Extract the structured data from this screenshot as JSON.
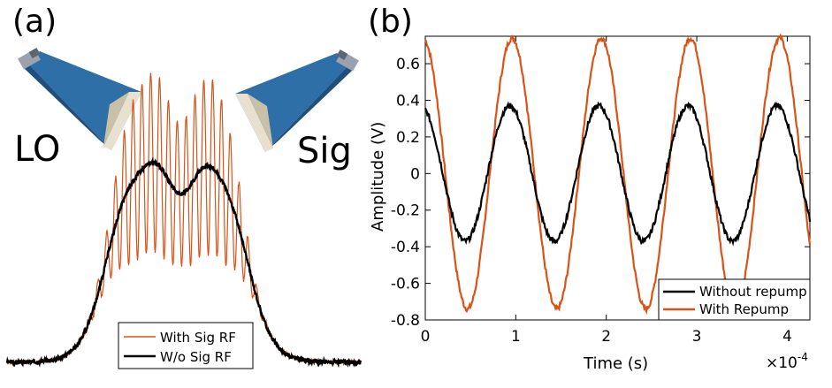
{
  "panels": {
    "a_label": "(a)",
    "b_label": "(b)"
  },
  "horn_labels": {
    "lo": "LO",
    "sig": "Sig"
  },
  "colors": {
    "black": "#000000",
    "orange": "#d95319",
    "horn_blue": "#2e6fa8",
    "horn_dark": "#1f4f7d",
    "horn_inner": "#e8e1cf"
  },
  "chart_data": [
    {
      "type": "line",
      "title": "",
      "xlabel": "",
      "ylabel": "",
      "legend": {
        "position": "bottom-right",
        "entries": [
          "With Sig RF",
          "W/o Sig RF"
        ]
      },
      "series": [
        {
          "name": "W/o Sig RF",
          "color": "#000000",
          "description": "double-humped envelope (peaks ~0.95, central dip ~0.82, baseline ~0)"
        },
        {
          "name": "With Sig RF",
          "color": "#d95319",
          "description": "same envelope modulated by interference fringes"
        }
      ]
    },
    {
      "type": "line",
      "title": "",
      "xlabel": "Time (s)",
      "ylabel": "Amplitude (V)",
      "x_multiplier": "×10",
      "x_multiplier_exp": "-4",
      "xlim": [
        0,
        4.25
      ],
      "ylim": [
        -0.8,
        0.75
      ],
      "xticks": [
        "0",
        "1",
        "2",
        "3",
        "4"
      ],
      "yticks": [
        "-0.8",
        "-0.6",
        "-0.4",
        "-0.2",
        "0",
        "0.2",
        "0.4",
        "0.6"
      ],
      "ytick_values": [
        -0.8,
        -0.6,
        -0.4,
        -0.2,
        0,
        0.2,
        0.4,
        0.6
      ],
      "xtick_values": [
        0,
        1,
        2,
        3,
        4
      ],
      "legend": {
        "position": "bottom-right",
        "entries": [
          "Without repump",
          "With Repump"
        ]
      },
      "series": [
        {
          "name": "Without repump",
          "color": "#000000",
          "amplitude": 0.37,
          "period": 0.985,
          "phase_offset": 0.4,
          "x": [
            0,
            0.45,
            0.95,
            1.45,
            1.95,
            2.45,
            2.95,
            3.45,
            3.95,
            4.25
          ],
          "y": [
            0.35,
            -0.38,
            0.36,
            -0.39,
            0.37,
            -0.44,
            0.36,
            -0.38,
            0.36,
            -0.07
          ]
        },
        {
          "name": "With Repump",
          "color": "#d95319",
          "amplitude": 0.74,
          "period": 0.985,
          "phase_offset": 0.22,
          "x": [
            0,
            0.48,
            0.95,
            1.45,
            1.95,
            2.45,
            2.95,
            3.45,
            3.95,
            4.25
          ],
          "y": [
            0.73,
            -0.75,
            0.75,
            -0.73,
            0.73,
            -0.73,
            0.73,
            -0.72,
            0.73,
            0.1
          ]
        }
      ]
    }
  ]
}
